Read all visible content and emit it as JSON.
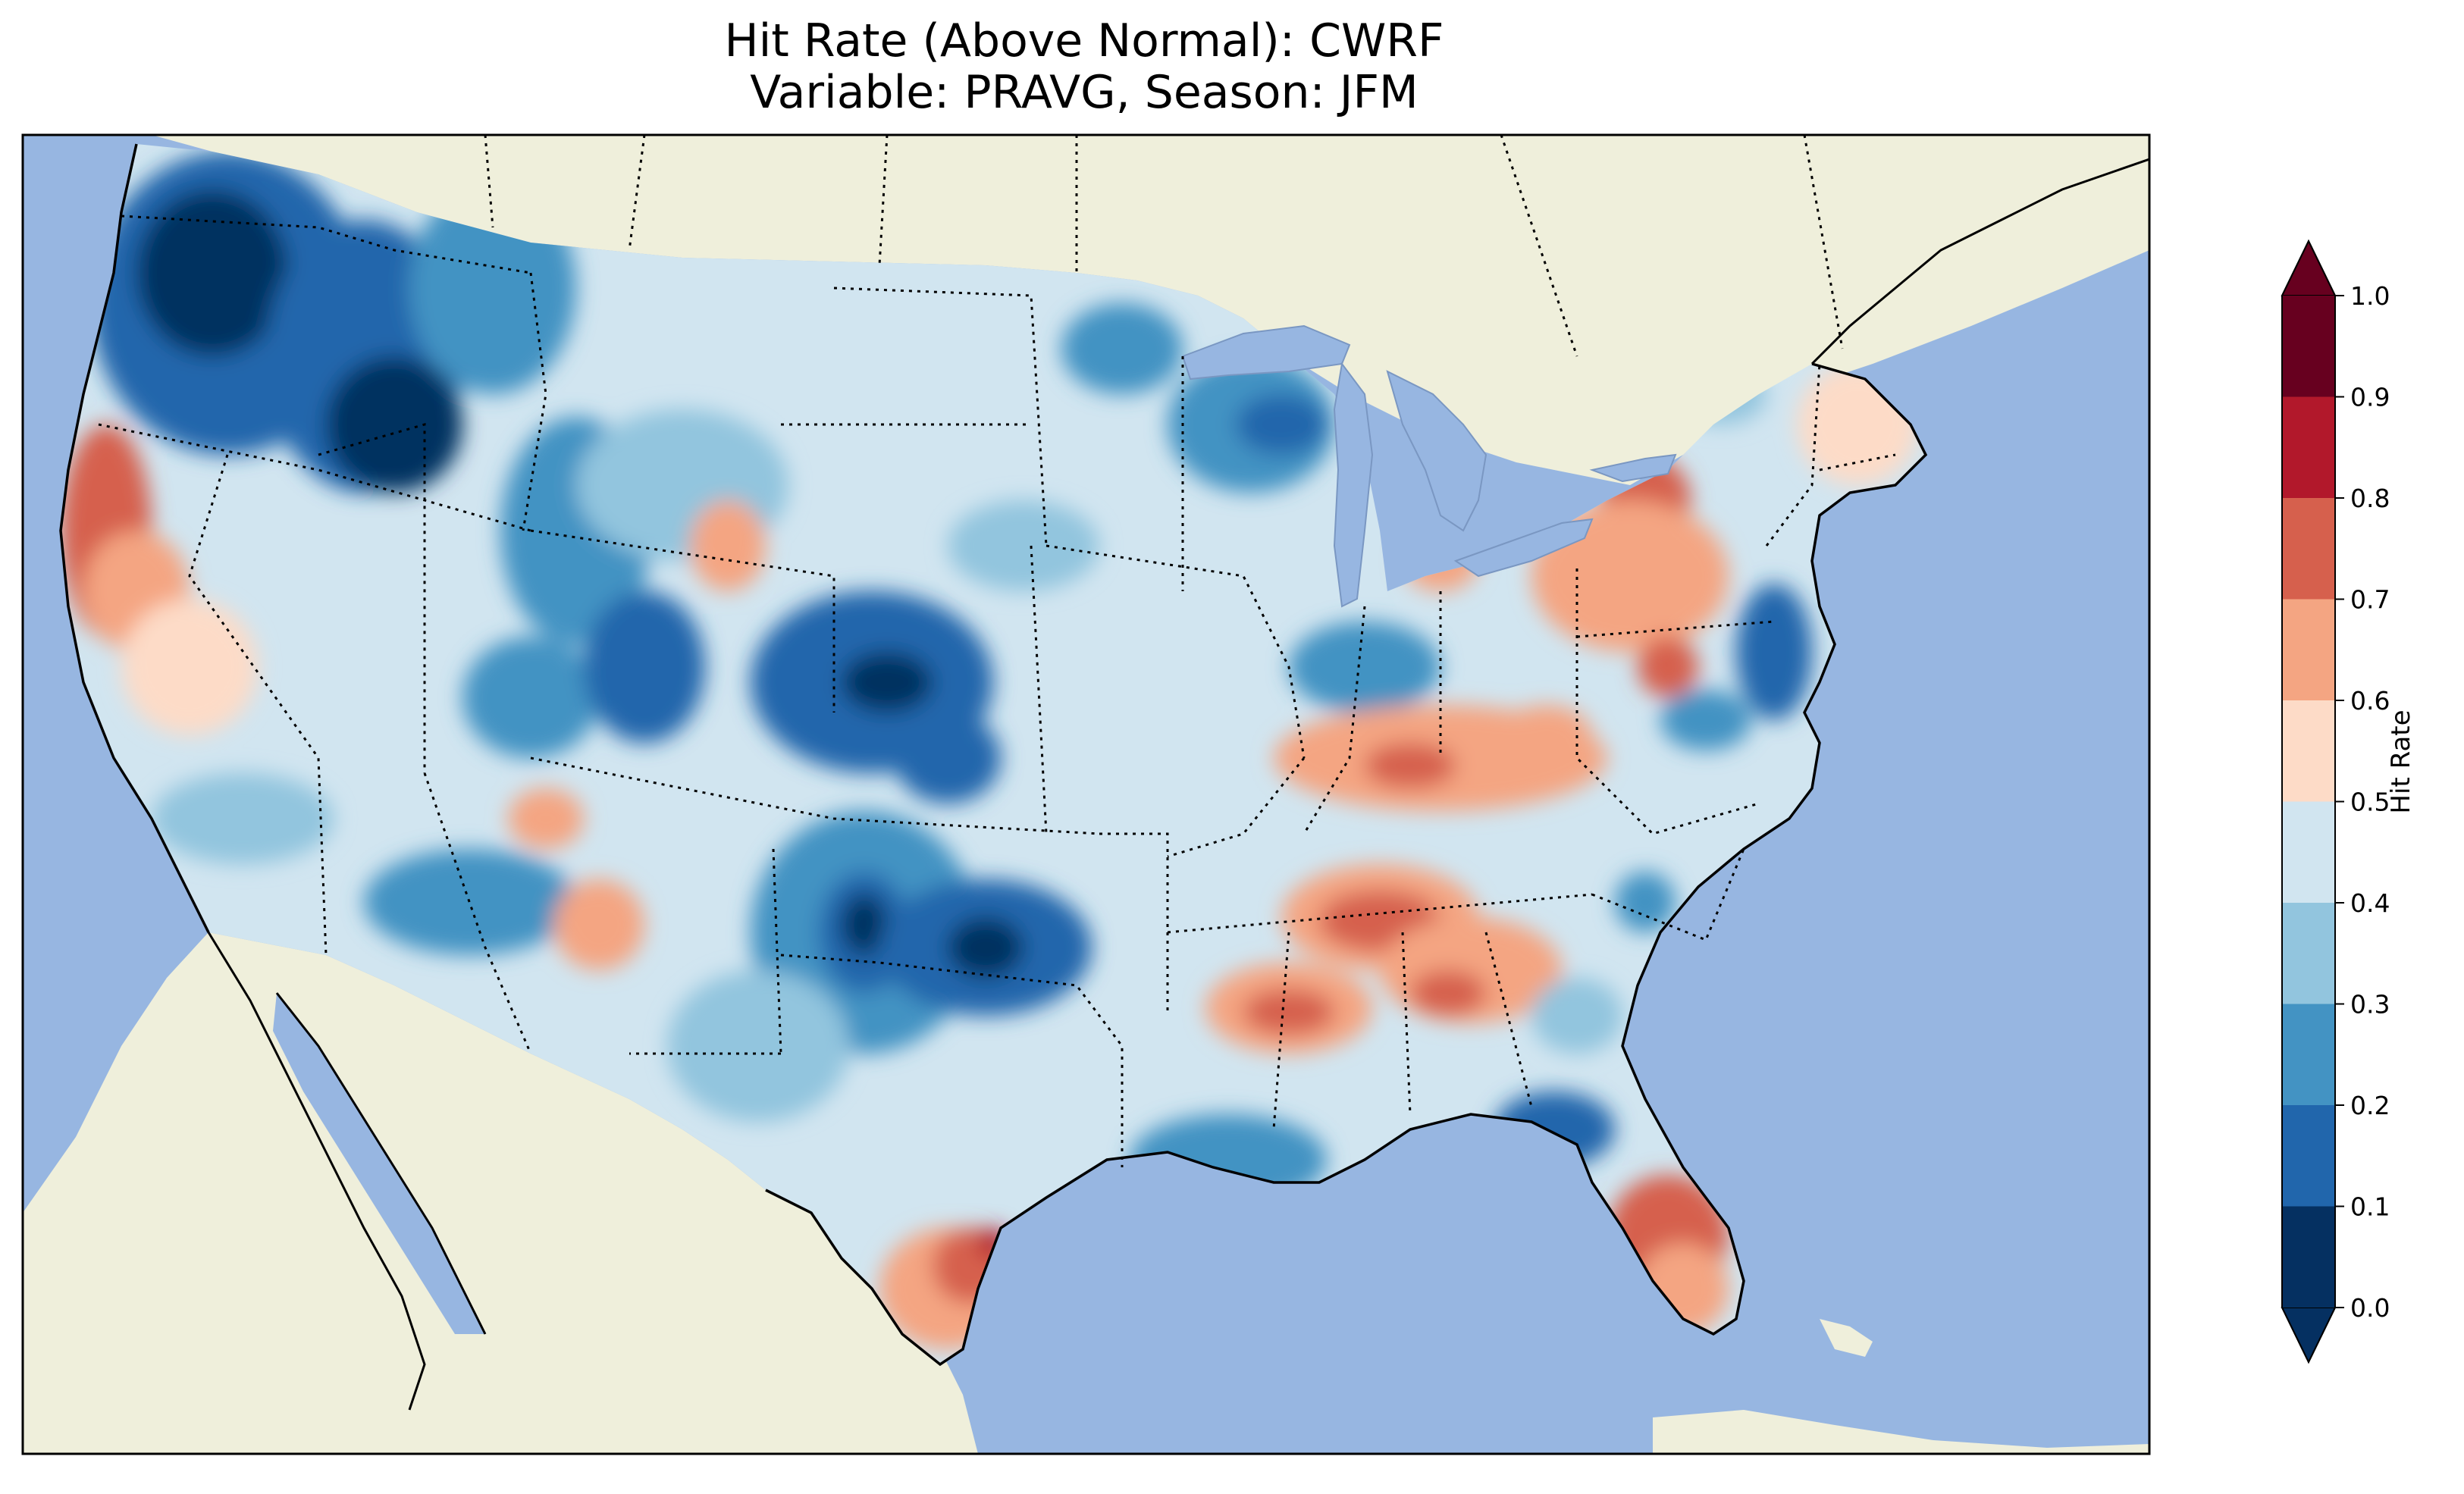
{
  "title_line1": "Hit Rate (Above Normal): CWRF",
  "title_line2": "Variable: PRAVG, Season: JFM",
  "map": {
    "projection": "Lambert Conformal (CONUS)",
    "region": "Contiguous United States with parts of Canada and Mexico",
    "ocean_color": "#97b6e1",
    "land_color": "#efefdb",
    "boundaries": "coastlines (solid), state/province borders (dotted)",
    "field_description": "Gridded hit rate: low values (blue) widespread in the Northwest and Southern Plains; high values (red) along central California coast, south Texas coast, Florida and Tennessee Valley"
  },
  "colorbar": {
    "label": "Hit Rate",
    "extend": "both",
    "ticks": [
      "0.0",
      "0.1",
      "0.2",
      "0.3",
      "0.4",
      "0.5",
      "0.6",
      "0.7",
      "0.8",
      "0.9",
      "1.0"
    ],
    "colors": [
      "#053061",
      "#2166ac",
      "#4393c3",
      "#92c5de",
      "#d1e5f0",
      "#fddbc7",
      "#f4a582",
      "#d6604d",
      "#b2182b",
      "#67001f"
    ],
    "under_color": "#053061",
    "over_color": "#67001f"
  },
  "chart_data": {
    "type": "heatmap",
    "title": "Hit Rate (Above Normal): CWRF\nVariable: PRAVG, Season: JFM",
    "colorbar_label": "Hit Rate",
    "value_range": [
      0.0,
      1.0
    ],
    "levels": [
      0.0,
      0.1,
      0.2,
      0.3,
      0.4,
      0.5,
      0.6,
      0.7,
      0.8,
      0.9,
      1.0
    ],
    "colormap": "RdBu_r",
    "regions_observed": [
      {
        "region": "Washington / northern Idaho",
        "value": 0.1
      },
      {
        "region": "Oregon",
        "value": 0.2
      },
      {
        "region": "Central California coast",
        "value": 0.7
      },
      {
        "region": "Eastern Colorado / western Kansas",
        "value": 0.1
      },
      {
        "region": "Oklahoma",
        "value": 0.1
      },
      {
        "region": "West Texas",
        "value": 0.2
      },
      {
        "region": "Nevada",
        "value": 0.4
      },
      {
        "region": "Minnesota / Wisconsin",
        "value": 0.2
      },
      {
        "region": "Kentucky",
        "value": 0.6
      },
      {
        "region": "Tennessee / northern Alabama",
        "value": 0.7
      },
      {
        "region": "Arkansas",
        "value": 0.7
      },
      {
        "region": "South Texas coast",
        "value": 0.8
      },
      {
        "region": "Central Florida",
        "value": 0.7
      },
      {
        "region": "Southern Louisiana / Mississippi coast",
        "value": 0.2
      },
      {
        "region": "Western New York / Pennsylvania",
        "value": 0.7
      },
      {
        "region": "Chesapeake / Delaware",
        "value": 0.2
      },
      {
        "region": "Virginia",
        "value": 0.6
      },
      {
        "region": "Georgia / Carolinas",
        "value": 0.4
      },
      {
        "region": "New England",
        "value": 0.5
      }
    ]
  }
}
